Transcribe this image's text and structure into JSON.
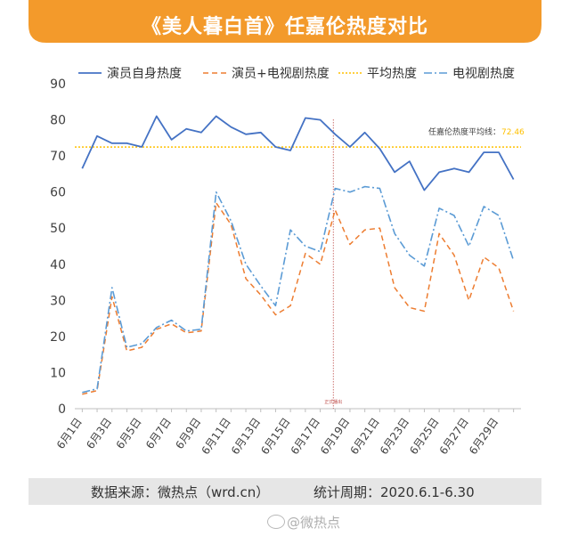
{
  "header": {
    "title": "《美人暮白首》任嘉伦热度对比"
  },
  "chart_data": {
    "type": "line",
    "title": "《美人暮白首》任嘉伦热度对比",
    "x": [
      "6月1日",
      "6月2日",
      "6月3日",
      "6月4日",
      "6月5日",
      "6月6日",
      "6月7日",
      "6月8日",
      "6月9日",
      "6月10日",
      "6月11日",
      "6月12日",
      "6月13日",
      "6月14日",
      "6月15日",
      "6月16日",
      "6月17日",
      "6月18日",
      "6月19日",
      "6月20日",
      "6月21日",
      "6月22日",
      "6月23日",
      "6月24日",
      "6月25日",
      "6月26日",
      "6月27日",
      "6月28日",
      "6月29日",
      "6月30日"
    ],
    "tick_labels": [
      "6月1日",
      "6月3日",
      "6月5日",
      "6月7日",
      "6月9日",
      "6月11日",
      "6月13日",
      "6月15日",
      "6月17日",
      "6月19日",
      "6月21日",
      "6月23日",
      "6月25日",
      "6月27日",
      "6月29日"
    ],
    "ylim": [
      0,
      90
    ],
    "yticks": [
      0,
      10,
      20,
      30,
      40,
      50,
      60,
      70,
      80,
      90
    ],
    "grid": false,
    "legend": "top",
    "series": [
      {
        "name": "演员自身热度",
        "style": "solid",
        "color": "#4472c4",
        "values": [
          66.5,
          75.5,
          73.5,
          73.5,
          72.5,
          81,
          74.5,
          77.5,
          76.5,
          81,
          78,
          76,
          76.5,
          72.5,
          71.5,
          80.5,
          80,
          76,
          72.5,
          76.5,
          72,
          65.5,
          68.5,
          60.5,
          65.5,
          66.5,
          65.5,
          71,
          71,
          63.5
        ]
      },
      {
        "name": "演员+电视剧热度",
        "style": "dashed",
        "color": "#ed7d31",
        "values": [
          4,
          5,
          31,
          16,
          17,
          22,
          23.5,
          21,
          21.5,
          57,
          51,
          36,
          31.5,
          26,
          28.5,
          43,
          40,
          55,
          45.5,
          49.5,
          50,
          33.5,
          28,
          27,
          48.5,
          42.5,
          30,
          42,
          39,
          27
        ]
      },
      {
        "name": "平均热度",
        "style": "dotted",
        "color": "#ffc000",
        "values": [
          72.46,
          72.46,
          72.46,
          72.46,
          72.46,
          72.46,
          72.46,
          72.46,
          72.46,
          72.46,
          72.46,
          72.46,
          72.46,
          72.46,
          72.46,
          72.46,
          72.46,
          72.46,
          72.46,
          72.46,
          72.46,
          72.46,
          72.46,
          72.46,
          72.46,
          72.46,
          72.46,
          72.46,
          72.46,
          72.46
        ]
      },
      {
        "name": "电视剧热度",
        "style": "dashdot",
        "color": "#5b9bd5",
        "values": [
          4.5,
          5.5,
          33.5,
          17,
          18,
          22.5,
          24.5,
          21.5,
          22,
          60,
          52,
          40,
          34,
          28.5,
          49.5,
          45,
          43.5,
          61,
          60,
          61.5,
          61,
          48.5,
          42.5,
          39.5,
          55.5,
          53.5,
          45,
          56,
          53.5,
          41
        ]
      }
    ],
    "annotations": {
      "average_label": "任嘉伦热度平均线：",
      "average_value": "72.46",
      "event_label": "正式播出",
      "event_x": "6月18日"
    },
    "colors": {
      "banner": "#f39a2b",
      "average_value": "#ffc000",
      "event_line": "#c0504d"
    }
  },
  "footer": {
    "source": "数据来源：微热点（wrd.cn）",
    "period": "统计周期：2020.6.1-6.30"
  },
  "watermark": {
    "text": "@微热点",
    "icon": "weibo-icon"
  }
}
